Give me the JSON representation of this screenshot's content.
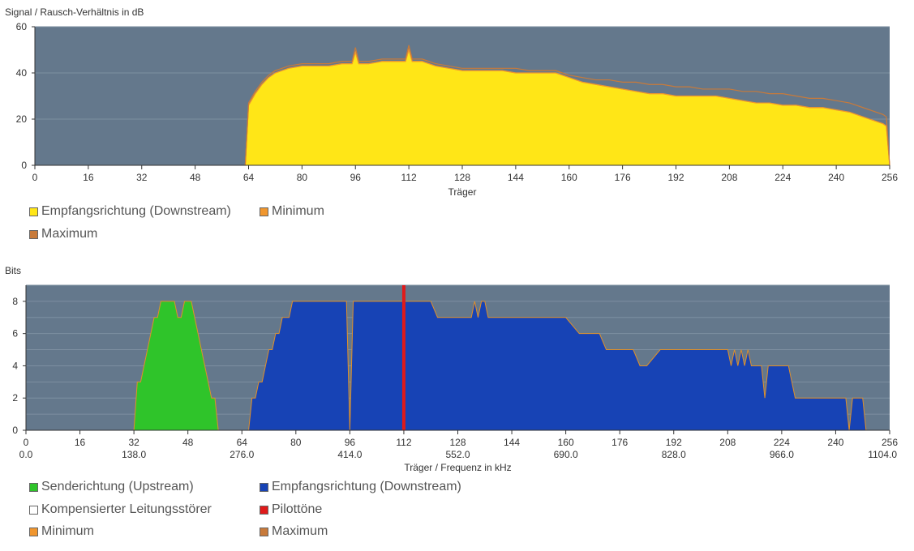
{
  "chart_data": [
    {
      "type": "area",
      "title": "Signal / Rausch-Verhältnis in dB",
      "xlabel": "Träger",
      "ylabel": "",
      "xlim": [
        0,
        256
      ],
      "ylim": [
        0,
        60
      ],
      "xticks": [
        0,
        16,
        32,
        48,
        64,
        80,
        96,
        112,
        128,
        144,
        160,
        176,
        192,
        208,
        224,
        240,
        256
      ],
      "xtick_labels": [
        "0",
        "16",
        "32",
        "48",
        "64",
        "80",
        "96",
        "112",
        "128",
        "144",
        "160",
        "176",
        "192",
        "208",
        "224",
        "240",
        "256"
      ],
      "yticks": [
        0,
        20,
        40,
        60
      ],
      "ytick_labels": [
        "0",
        "20",
        "40",
        "60"
      ],
      "grid": true,
      "legend": [
        {
          "label": "Empfangsrichtung (Downstream)",
          "color": "#ffe617"
        },
        {
          "label": "Minimum",
          "color": "#f0962e"
        },
        {
          "label": "Maximum",
          "color": "#c87a3a"
        }
      ],
      "series": [
        {
          "name": "Empfangsrichtung (Downstream)",
          "color": "#ffe617",
          "x": [
            63,
            64,
            66,
            68,
            70,
            72,
            74,
            76,
            80,
            84,
            88,
            92,
            95,
            96,
            97,
            100,
            104,
            108,
            111,
            112,
            113,
            116,
            120,
            124,
            128,
            132,
            136,
            140,
            144,
            148,
            152,
            156,
            158,
            160,
            164,
            168,
            172,
            176,
            180,
            184,
            188,
            192,
            196,
            200,
            204,
            208,
            212,
            216,
            220,
            224,
            228,
            232,
            236,
            240,
            244,
            248,
            252,
            254,
            255,
            256
          ],
          "values": [
            0,
            26,
            31,
            35,
            38,
            40,
            41,
            42,
            43,
            43,
            43,
            44,
            44,
            49,
            44,
            44,
            45,
            45,
            45,
            50,
            45,
            45,
            43,
            42,
            41,
            41,
            41,
            41,
            40,
            40,
            40,
            40,
            39,
            38,
            36,
            35,
            34,
            33,
            32,
            31,
            31,
            30,
            30,
            30,
            30,
            29,
            28,
            27,
            27,
            26,
            26,
            25,
            25,
            24,
            23,
            21,
            19,
            18,
            17,
            0
          ]
        },
        {
          "name": "Minimum",
          "color": "#f0962e",
          "x": [
            63,
            64,
            66,
            68,
            70,
            72,
            74,
            76,
            80,
            84,
            88,
            92,
            95,
            96,
            97,
            100,
            104,
            108,
            111,
            112,
            113,
            116,
            120,
            124,
            128,
            132,
            136,
            140,
            144,
            148,
            152,
            156,
            158,
            160,
            164,
            168,
            172,
            176,
            180,
            184,
            188,
            192,
            196,
            200,
            204,
            208,
            212,
            216,
            220,
            224,
            228,
            232,
            236,
            240,
            244,
            248,
            252,
            254,
            255,
            256
          ],
          "values": [
            0,
            26,
            31,
            35,
            38,
            40,
            41,
            42,
            43,
            43,
            43,
            44,
            44,
            49,
            44,
            44,
            45,
            45,
            45,
            50,
            45,
            45,
            43,
            42,
            41,
            41,
            41,
            41,
            40,
            40,
            40,
            40,
            39,
            38,
            36,
            35,
            34,
            33,
            32,
            31,
            31,
            30,
            30,
            30,
            30,
            29,
            28,
            27,
            27,
            26,
            26,
            25,
            25,
            24,
            23,
            21,
            19,
            18,
            17,
            0
          ]
        },
        {
          "name": "Maximum",
          "color": "#c87a3a",
          "x": [
            63,
            64,
            66,
            68,
            70,
            72,
            74,
            76,
            80,
            84,
            88,
            92,
            95,
            96,
            97,
            100,
            104,
            108,
            111,
            112,
            113,
            116,
            120,
            124,
            128,
            132,
            136,
            140,
            144,
            148,
            152,
            156,
            158,
            160,
            164,
            168,
            172,
            176,
            180,
            184,
            188,
            192,
            196,
            200,
            204,
            208,
            212,
            216,
            220,
            224,
            228,
            232,
            236,
            240,
            244,
            248,
            252,
            254,
            255,
            256
          ],
          "values": [
            0,
            27,
            32,
            36,
            39,
            41,
            42,
            43,
            44,
            44,
            44,
            45,
            45,
            51,
            45,
            45,
            46,
            46,
            46,
            52,
            46,
            46,
            44,
            43,
            42,
            42,
            42,
            42,
            42,
            41,
            41,
            41,
            40,
            39,
            38,
            37,
            37,
            36,
            36,
            35,
            35,
            34,
            34,
            33,
            33,
            33,
            32,
            32,
            31,
            31,
            30,
            29,
            29,
            28,
            27,
            25,
            23,
            22,
            21,
            0
          ]
        }
      ]
    },
    {
      "type": "area",
      "title": "Bits",
      "xlabel": "Träger / Frequenz in kHz",
      "ylabel": "",
      "xlim": [
        0,
        256
      ],
      "ylim": [
        0,
        9
      ],
      "xticks": [
        0,
        16,
        32,
        48,
        64,
        80,
        96,
        112,
        128,
        144,
        160,
        176,
        192,
        208,
        224,
        240,
        256
      ],
      "xtick_labels": [
        "0",
        "16",
        "32",
        "48",
        "64",
        "80",
        "96",
        "112",
        "128",
        "144",
        "160",
        "176",
        "192",
        "208",
        "224",
        "240",
        "256"
      ],
      "xtick_labels_khz": [
        {
          "x": 0,
          "label": "0.0"
        },
        {
          "x": 32,
          "label": "138.0"
        },
        {
          "x": 64,
          "label": "276.0"
        },
        {
          "x": 96,
          "label": "414.0"
        },
        {
          "x": 128,
          "label": "552.0"
        },
        {
          "x": 160,
          "label": "690.0"
        },
        {
          "x": 192,
          "label": "828.0"
        },
        {
          "x": 224,
          "label": "966.0"
        },
        {
          "x": 256,
          "label": "1104.0"
        }
      ],
      "yticks": [
        0,
        2,
        4,
        6,
        8
      ],
      "ytick_labels": [
        "0",
        "2",
        "4",
        "6",
        "8"
      ],
      "grid": true,
      "legend": [
        {
          "label": "Senderichtung (Upstream)",
          "color": "#2fc42a"
        },
        {
          "label": "Empfangsrichtung (Downstream)",
          "color": "#1743b5"
        },
        {
          "label": "Kompensierter Leitungsstörer",
          "color": "#ffffff"
        },
        {
          "label": "Pilottöne",
          "color": "#e01a1a"
        },
        {
          "label": "Minimum",
          "color": "#f0962e"
        },
        {
          "label": "Maximum",
          "color": "#c87a3a"
        }
      ],
      "series": [
        {
          "name": "Senderichtung (Upstream)",
          "color": "#2fc42a",
          "x": [
            32,
            33,
            34,
            35,
            36,
            37,
            38,
            39,
            40,
            41,
            42,
            43,
            44,
            45,
            46,
            47,
            48,
            49,
            50,
            51,
            52,
            53,
            54,
            55,
            56,
            57
          ],
          "values": [
            0,
            3,
            3,
            4,
            5,
            6,
            7,
            7,
            8,
            8,
            8,
            8,
            8,
            7,
            7,
            8,
            8,
            8,
            7,
            6,
            5,
            4,
            3,
            2,
            2,
            0
          ]
        },
        {
          "name": "Empfangsrichtung (Downstream)",
          "color": "#1743b5",
          "x": [
            66,
            67,
            68,
            69,
            70,
            71,
            72,
            73,
            74,
            75,
            76,
            77,
            78,
            79,
            80,
            81,
            85,
            90,
            94,
            95,
            96,
            97,
            100,
            104,
            108,
            110,
            111,
            112,
            113,
            114,
            116,
            120,
            122,
            124,
            128,
            132,
            133,
            134,
            135,
            136,
            137,
            140,
            148,
            156,
            160,
            164,
            168,
            170,
            172,
            176,
            180,
            182,
            184,
            188,
            192,
            200,
            208,
            209,
            210,
            211,
            212,
            213,
            214,
            215,
            216,
            218,
            219,
            220,
            222,
            224,
            226,
            228,
            232,
            236,
            240,
            243,
            244,
            245,
            246,
            247,
            248,
            249,
            250
          ],
          "values": [
            0,
            2,
            2,
            3,
            3,
            4,
            5,
            5,
            6,
            6,
            7,
            7,
            7,
            8,
            8,
            8,
            8,
            8,
            8,
            8,
            0,
            8,
            8,
            8,
            8,
            8,
            8,
            8,
            8,
            8,
            8,
            8,
            7,
            7,
            7,
            7,
            8,
            7,
            8,
            8,
            7,
            7,
            7,
            7,
            7,
            6,
            6,
            6,
            5,
            5,
            5,
            4,
            4,
            5,
            5,
            5,
            5,
            4,
            5,
            4,
            5,
            4,
            5,
            4,
            4,
            4,
            2,
            4,
            4,
            4,
            4,
            2,
            2,
            2,
            2,
            2,
            0,
            2,
            2,
            2,
            2,
            0,
            0
          ]
        },
        {
          "name": "Pilottöne",
          "color": "#e01a1a",
          "x": [
            112
          ],
          "values": [
            9
          ]
        }
      ]
    }
  ]
}
